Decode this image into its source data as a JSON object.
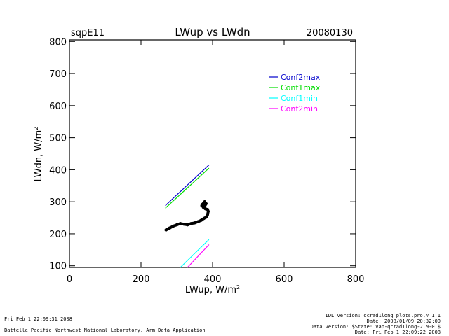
{
  "header": {
    "site": "sqpE11",
    "title": "LWup vs LWdn",
    "date": "20080130"
  },
  "chart_data": {
    "type": "line",
    "xlabel": "LWup, W/m",
    "xlabel_sup": "2",
    "ylabel": "LWdn, W/m",
    "ylabel_sup": "2",
    "xlim": [
      0,
      800
    ],
    "ylim": [
      95,
      805
    ],
    "xticks": [
      0,
      200,
      400,
      600,
      800
    ],
    "yticks": [
      100,
      200,
      300,
      400,
      500,
      600,
      700,
      800
    ],
    "grid": false,
    "legend_position": "top-right",
    "series": [
      {
        "name": "Conf2max",
        "color": "#0000cc",
        "x": [
          268,
          390
        ],
        "y": [
          288,
          415
        ]
      },
      {
        "name": "Conf1max",
        "color": "#00dd00",
        "x": [
          268,
          390
        ],
        "y": [
          280,
          405
        ]
      },
      {
        "name": "Conf1min",
        "color": "#00ffff",
        "x": [
          310,
          390
        ],
        "y": [
          95,
          182
        ]
      },
      {
        "name": "Conf2min",
        "color": "#ff00ff",
        "x": [
          330,
          390
        ],
        "y": [
          95,
          166
        ]
      }
    ],
    "observations": {
      "color": "#000000",
      "x": [
        270,
        280,
        290,
        300,
        310,
        320,
        330,
        340,
        350,
        360,
        368,
        376,
        382,
        386,
        388,
        386,
        380,
        374,
        372,
        378,
        382,
        378,
        370
      ],
      "y": [
        212,
        218,
        224,
        228,
        232,
        230,
        228,
        232,
        234,
        238,
        242,
        248,
        252,
        260,
        270,
        276,
        278,
        283,
        292,
        300,
        294,
        286,
        288
      ]
    }
  },
  "footer": {
    "left_line1": "Fri Feb  1 22:09:31 2008",
    "left_line2": "Battelle Pacific Northwest National Laboratory, Arm Data Application",
    "right_line1": "IDL version: qcrad1long_plots.pro,v 1.1",
    "right_line2": "Date: 2008/01/09 20:32:00",
    "right_line3": "Data version: $State: vap-qcrad1long-2.9-0 $",
    "right_line4": "Date: Fri Feb  1 22:09:22 2008"
  }
}
